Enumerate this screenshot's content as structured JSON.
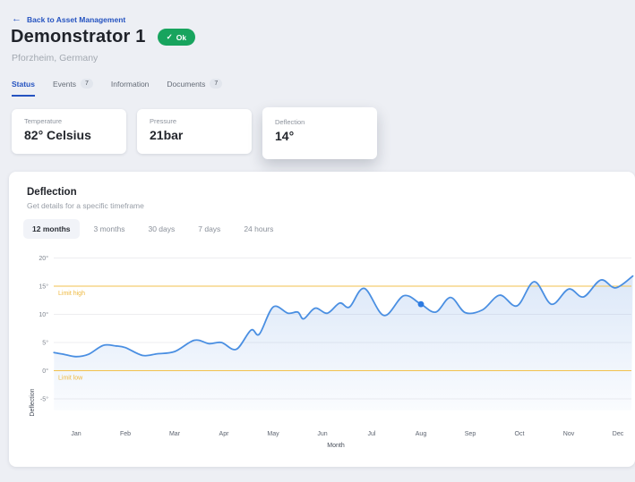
{
  "header": {
    "back_label": "Back to Asset Management",
    "title": "Demonstrator 1",
    "status_badge": "Ok",
    "status_color": "#18a45e",
    "location": "Pforzheim, Germany"
  },
  "tabs": [
    {
      "label": "Status",
      "active": true
    },
    {
      "label": "Events",
      "badge": "7"
    },
    {
      "label": "Information"
    },
    {
      "label": "Documents",
      "badge": "7"
    }
  ],
  "summary_cards": [
    {
      "label": "Temperature",
      "value": "82° Celsius"
    },
    {
      "label": "Pressure",
      "value": "21bar"
    },
    {
      "label": "Deflection",
      "value": "14°",
      "selected": true
    }
  ],
  "chart_panel": {
    "title": "Deflection",
    "subtitle": "Get details for a specific timeframe",
    "timeframes": [
      {
        "label": "12 months",
        "active": true
      },
      {
        "label": "3 months"
      },
      {
        "label": "30 days"
      },
      {
        "label": "7 days"
      },
      {
        "label": "24 hours"
      }
    ]
  },
  "chart_data": {
    "type": "line",
    "xlabel": "Month",
    "ylabel": "Deflection",
    "unit": "°",
    "ylim": [
      -5,
      20
    ],
    "y_ticks": [
      20,
      15,
      10,
      5,
      0,
      -5
    ],
    "x_categories": [
      "Jan",
      "Feb",
      "Mar",
      "Apr",
      "May",
      "Jun",
      "Jul",
      "Aug",
      "Sep",
      "Oct",
      "Nov",
      "Dec"
    ],
    "limit_high": {
      "value": 15,
      "label": "Limit high"
    },
    "limit_low": {
      "value": 0,
      "label": "Limit low"
    },
    "series": [
      {
        "name": "Deflection",
        "points": [
          [
            -0.45,
            3.2
          ],
          [
            -0.25,
            2.9
          ],
          [
            0,
            2.5
          ],
          [
            0.25,
            2.9
          ],
          [
            0.55,
            4.5
          ],
          [
            0.8,
            4.4
          ],
          [
            1.0,
            4.1
          ],
          [
            1.35,
            2.7
          ],
          [
            1.65,
            3.0
          ],
          [
            2.0,
            3.4
          ],
          [
            2.4,
            5.4
          ],
          [
            2.7,
            4.8
          ],
          [
            2.95,
            5.0
          ],
          [
            3.25,
            3.8
          ],
          [
            3.55,
            7.2
          ],
          [
            3.72,
            6.5
          ],
          [
            4.0,
            11.3
          ],
          [
            4.3,
            10.2
          ],
          [
            4.5,
            10.4
          ],
          [
            4.62,
            9.2
          ],
          [
            4.85,
            11.1
          ],
          [
            5.1,
            10.2
          ],
          [
            5.35,
            12.0
          ],
          [
            5.55,
            11.3
          ],
          [
            5.85,
            14.6
          ],
          [
            6.25,
            9.8
          ],
          [
            6.65,
            13.3
          ],
          [
            7.0,
            11.8
          ],
          [
            7.3,
            10.4
          ],
          [
            7.6,
            13.0
          ],
          [
            7.9,
            10.3
          ],
          [
            8.25,
            10.8
          ],
          [
            8.6,
            13.4
          ],
          [
            8.95,
            11.5
          ],
          [
            9.3,
            15.8
          ],
          [
            9.65,
            11.8
          ],
          [
            10.0,
            14.5
          ],
          [
            10.3,
            13.1
          ],
          [
            10.65,
            16.1
          ],
          [
            10.95,
            14.7
          ],
          [
            11.3,
            16.8
          ]
        ]
      }
    ],
    "marker": {
      "x": 7.0,
      "y": 11.8
    },
    "colors": {
      "line": "#4a8fe2",
      "marker": "#2d7be2",
      "area_top": "rgba(96,150,225,0.22)",
      "area_bottom": "rgba(96,150,225,0.03)",
      "limit": "#f2c24e",
      "grid": "#ededf0"
    }
  }
}
